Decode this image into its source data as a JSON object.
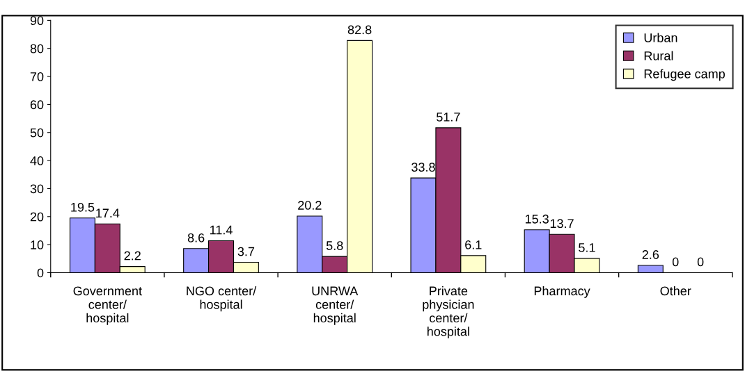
{
  "chart_data": {
    "type": "bar",
    "categories": [
      "Government center/ hospital",
      "NGO center/ hospital",
      "UNRWA center/ hospital",
      "Private physician center/ hospital",
      "Pharmacy",
      "Other"
    ],
    "series": [
      {
        "name": "Urban",
        "color": "#9999ff",
        "values": [
          19.5,
          8.6,
          20.2,
          33.8,
          15.3,
          2.6
        ]
      },
      {
        "name": "Rural",
        "color": "#993366",
        "values": [
          17.4,
          11.4,
          5.8,
          51.7,
          13.7,
          0
        ]
      },
      {
        "name": "Refugee camp",
        "color": "#ffffcc",
        "values": [
          2.2,
          3.7,
          82.8,
          6.1,
          5.1,
          0
        ]
      }
    ],
    "ylim": [
      0,
      90
    ],
    "yticks": [
      0,
      10,
      20,
      30,
      40,
      50,
      60,
      70,
      80,
      90
    ],
    "data_labels": true,
    "grid": false,
    "legend": "top right"
  }
}
